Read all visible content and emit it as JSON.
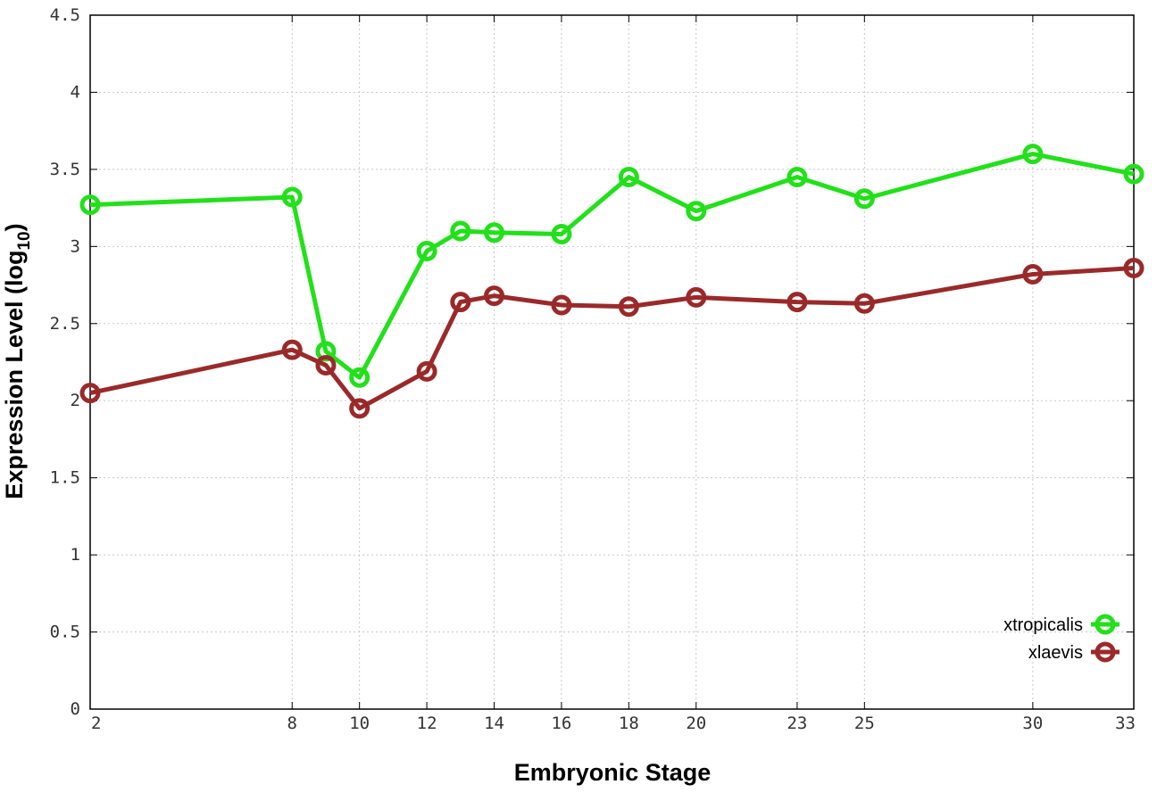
{
  "chart_data": {
    "type": "line",
    "x": [
      2,
      8,
      9,
      10,
      12,
      13,
      14,
      16,
      18,
      20,
      23,
      25,
      30,
      33
    ],
    "xticks": [
      2,
      8,
      10,
      12,
      14,
      16,
      18,
      20,
      23,
      25,
      30,
      33
    ],
    "xlim": [
      2,
      33
    ],
    "ylim": [
      0,
      4.5
    ],
    "yticks": [
      0,
      0.5,
      1,
      1.5,
      2,
      2.5,
      3,
      3.5,
      4,
      4.5
    ],
    "ytick_labels": [
      "0",
      "0.5",
      "1",
      "1.5",
      "2",
      "2.5",
      "3",
      "3.5",
      "4",
      "4.5"
    ],
    "xlabel": "Embryonic Stage",
    "ylabel_main": "Expression Level (log",
    "ylabel_sub": "10",
    "ylabel_end": ")",
    "grid": true,
    "legend_position": "bottom-right",
    "series": [
      {
        "name": "xtropicalis",
        "color": "#22e01a",
        "values": [
          3.27,
          3.32,
          2.32,
          2.15,
          2.97,
          3.1,
          3.09,
          3.08,
          3.45,
          3.23,
          3.45,
          3.31,
          3.6,
          3.47
        ]
      },
      {
        "name": "xlaevis",
        "color": "#9a2a2a",
        "values": [
          2.05,
          2.33,
          2.23,
          1.95,
          2.19,
          2.64,
          2.68,
          2.62,
          2.61,
          2.67,
          2.64,
          2.63,
          2.82,
          2.86
        ]
      }
    ]
  }
}
